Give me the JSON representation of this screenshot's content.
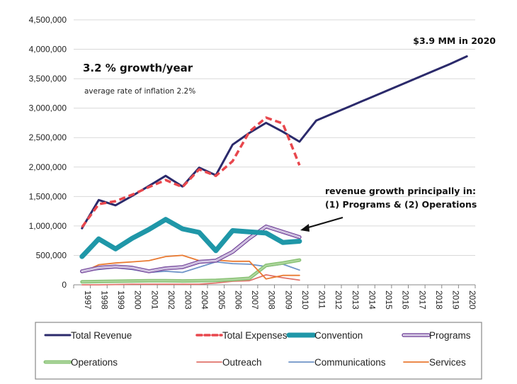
{
  "chart_data": {
    "type": "line",
    "title": "",
    "xlabel": "",
    "ylabel": "",
    "ylim": [
      0,
      4500000
    ],
    "yticks": [
      "0",
      "500,000",
      "1,000,000",
      "1,500,000",
      "2,000,000",
      "2,500,000",
      "3,000,000",
      "3,500,000",
      "4,000,000",
      "4,500,000"
    ],
    "ytick_values": [
      0,
      500000,
      1000000,
      1500000,
      2000000,
      2500000,
      3000000,
      3500000,
      4000000,
      4500000
    ],
    "grid": true,
    "categories": [
      "1997",
      "1998",
      "1999",
      "2000",
      "2001",
      "2002",
      "2003",
      "2004",
      "2005",
      "2006",
      "2007",
      "2008",
      "2009",
      "2010",
      "2011",
      "2012",
      "2013",
      "2014",
      "2015",
      "2016",
      "2017",
      "2018",
      "2019",
      "2020"
    ],
    "series": [
      {
        "name": "Total Revenue",
        "color": "#2b2a6b",
        "style": "solid",
        "values": [
          960000,
          1440000,
          1350000,
          1510000,
          1680000,
          1850000,
          1670000,
          1990000,
          1860000,
          2380000,
          2580000,
          2750000,
          2600000,
          2430000,
          2790000,
          2910000,
          3030000,
          3150000,
          3270000,
          3390000,
          3510000,
          3630000,
          3750000,
          3880000
        ]
      },
      {
        "name": "Total Expenses",
        "color": "#e8474d",
        "style": "dashed",
        "values": [
          980000,
          1370000,
          1420000,
          1530000,
          1660000,
          1780000,
          1660000,
          1960000,
          1850000,
          2100000,
          2600000,
          2840000,
          2740000,
          2030000,
          null,
          null,
          null,
          null,
          null,
          null,
          null,
          null,
          null,
          null
        ]
      },
      {
        "name": "Convention",
        "color": "#1f97a8",
        "style": "thick",
        "values": [
          480000,
          780000,
          610000,
          790000,
          940000,
          1110000,
          950000,
          890000,
          580000,
          920000,
          900000,
          880000,
          720000,
          740000,
          null,
          null,
          null,
          null,
          null,
          null,
          null,
          null,
          null,
          null
        ]
      },
      {
        "name": "Programs",
        "color": "#7a4fa0",
        "style": "double",
        "values": [
          230000,
          290000,
          310000,
          290000,
          230000,
          280000,
          300000,
          390000,
          410000,
          560000,
          790000,
          990000,
          900000,
          810000,
          null,
          null,
          null,
          null,
          null,
          null,
          null,
          null,
          null,
          null
        ]
      },
      {
        "name": "Operations",
        "color": "#8dc47a",
        "style": "thick-light",
        "values": [
          50000,
          55000,
          60000,
          65000,
          70000,
          70000,
          65000,
          70000,
          75000,
          90000,
          110000,
          330000,
          370000,
          420000,
          null,
          null,
          null,
          null,
          null,
          null,
          null,
          null,
          null,
          null
        ]
      },
      {
        "name": "Outreach",
        "color": "#e0736b",
        "style": "thin",
        "values": [
          0,
          0,
          5000,
          10000,
          10000,
          10000,
          10000,
          10000,
          30000,
          60000,
          70000,
          170000,
          120000,
          80000,
          null,
          null,
          null,
          null,
          null,
          null,
          null,
          null,
          null,
          null
        ]
      },
      {
        "name": "Communications",
        "color": "#6f94c8",
        "style": "thin",
        "values": [
          230000,
          260000,
          290000,
          260000,
          210000,
          230000,
          210000,
          300000,
          390000,
          360000,
          350000,
          310000,
          350000,
          250000,
          null,
          null,
          null,
          null,
          null,
          null,
          null,
          null,
          null,
          null
        ]
      },
      {
        "name": "Services",
        "color": "#e97a32",
        "style": "thin",
        "values": [
          210000,
          340000,
          370000,
          390000,
          410000,
          480000,
          500000,
          410000,
          420000,
          400000,
          400000,
          100000,
          160000,
          160000,
          null,
          null,
          null,
          null,
          null,
          null,
          null,
          null,
          null,
          null
        ]
      }
    ],
    "annotations": [
      {
        "text": "3.2 %  growth/year"
      },
      {
        "text": "average rate of inflation 2.2%"
      },
      {
        "text": "$3.9 MM in 2020"
      },
      {
        "text": "revenue growth principally in:"
      },
      {
        "text": "(1) Programs & (2) Operations"
      }
    ],
    "legend_position": "bottom"
  },
  "legend": {
    "items": [
      {
        "label": "Total Revenue"
      },
      {
        "label": "Total Expenses"
      },
      {
        "label": "Convention"
      },
      {
        "label": "Programs"
      },
      {
        "label": "Operations"
      },
      {
        "label": "Outreach"
      },
      {
        "label": "Communications"
      },
      {
        "label": "Services"
      }
    ]
  }
}
